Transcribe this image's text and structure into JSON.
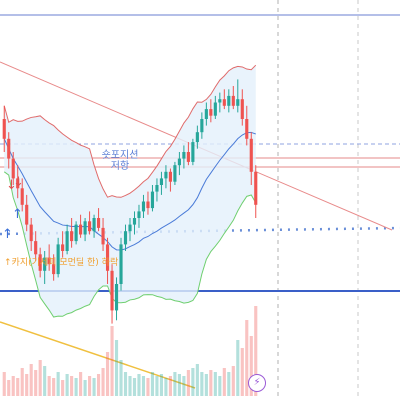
{
  "annotations": {
    "resistance_line1": "숏포지션",
    "resistance_line2": "저항",
    "entry_note": "↑카지(기세피 모먼딜 한) 하락"
  },
  "icons": {
    "replay": "lightning-icon"
  },
  "colors": {
    "up": "#26a69a",
    "down": "#ef5350",
    "band_fill": "#e3f0fb",
    "band_upper": "#e06b6b",
    "band_lower": "#6fcf6f",
    "band_mid": "#4a7bd8",
    "trend_red": "#e88a8a",
    "trend_orange": "#f0c040",
    "level_blue": "#3a5fc8",
    "dotted_blue": "#6a8fd8"
  },
  "chart_data": {
    "type": "candlestick",
    "overlays": [
      "bollinger_bands",
      "trendlines",
      "horizontal_levels"
    ],
    "price_range": [
      0,
      100
    ],
    "candles": [
      {
        "o": 70,
        "h": 74,
        "l": 60,
        "c": 64
      },
      {
        "o": 64,
        "h": 66,
        "l": 55,
        "c": 58
      },
      {
        "o": 58,
        "h": 60,
        "l": 50,
        "c": 52
      },
      {
        "o": 52,
        "h": 56,
        "l": 46,
        "c": 49
      },
      {
        "o": 49,
        "h": 52,
        "l": 42,
        "c": 44
      },
      {
        "o": 44,
        "h": 47,
        "l": 36,
        "c": 38
      },
      {
        "o": 38,
        "h": 40,
        "l": 30,
        "c": 33
      },
      {
        "o": 33,
        "h": 36,
        "l": 27,
        "c": 29
      },
      {
        "o": 29,
        "h": 31,
        "l": 22,
        "c": 24
      },
      {
        "o": 24,
        "h": 30,
        "l": 20,
        "c": 28
      },
      {
        "o": 28,
        "h": 32,
        "l": 24,
        "c": 26
      },
      {
        "o": 26,
        "h": 29,
        "l": 21,
        "c": 23
      },
      {
        "o": 23,
        "h": 34,
        "l": 22,
        "c": 32
      },
      {
        "o": 32,
        "h": 36,
        "l": 28,
        "c": 30
      },
      {
        "o": 30,
        "h": 38,
        "l": 29,
        "c": 36
      },
      {
        "o": 36,
        "h": 40,
        "l": 31,
        "c": 33
      },
      {
        "o": 33,
        "h": 39,
        "l": 32,
        "c": 38
      },
      {
        "o": 38,
        "h": 41,
        "l": 34,
        "c": 35
      },
      {
        "o": 35,
        "h": 40,
        "l": 33,
        "c": 39
      },
      {
        "o": 39,
        "h": 42,
        "l": 35,
        "c": 36
      },
      {
        "o": 36,
        "h": 41,
        "l": 34,
        "c": 40
      },
      {
        "o": 40,
        "h": 43,
        "l": 36,
        "c": 37
      },
      {
        "o": 37,
        "h": 40,
        "l": 30,
        "c": 32
      },
      {
        "o": 32,
        "h": 34,
        "l": 20,
        "c": 24
      },
      {
        "o": 24,
        "h": 26,
        "l": 8,
        "c": 12
      },
      {
        "o": 12,
        "h": 22,
        "l": 9,
        "c": 20
      },
      {
        "o": 20,
        "h": 34,
        "l": 18,
        "c": 32
      },
      {
        "o": 32,
        "h": 38,
        "l": 30,
        "c": 36
      },
      {
        "o": 36,
        "h": 40,
        "l": 33,
        "c": 38
      },
      {
        "o": 38,
        "h": 42,
        "l": 35,
        "c": 40
      },
      {
        "o": 40,
        "h": 44,
        "l": 37,
        "c": 42
      },
      {
        "o": 42,
        "h": 47,
        "l": 40,
        "c": 45
      },
      {
        "o": 45,
        "h": 48,
        "l": 41,
        "c": 43
      },
      {
        "o": 43,
        "h": 50,
        "l": 42,
        "c": 48
      },
      {
        "o": 48,
        "h": 52,
        "l": 45,
        "c": 50
      },
      {
        "o": 50,
        "h": 54,
        "l": 47,
        "c": 52
      },
      {
        "o": 52,
        "h": 56,
        "l": 49,
        "c": 54
      },
      {
        "o": 54,
        "h": 55,
        "l": 48,
        "c": 51
      },
      {
        "o": 51,
        "h": 57,
        "l": 50,
        "c": 56
      },
      {
        "o": 56,
        "h": 60,
        "l": 53,
        "c": 58
      },
      {
        "o": 58,
        "h": 62,
        "l": 55,
        "c": 60
      },
      {
        "o": 60,
        "h": 63,
        "l": 56,
        "c": 57
      },
      {
        "o": 57,
        "h": 64,
        "l": 56,
        "c": 63
      },
      {
        "o": 63,
        "h": 68,
        "l": 61,
        "c": 66
      },
      {
        "o": 66,
        "h": 72,
        "l": 64,
        "c": 70
      },
      {
        "o": 70,
        "h": 75,
        "l": 68,
        "c": 73
      },
      {
        "o": 73,
        "h": 76,
        "l": 69,
        "c": 71
      },
      {
        "o": 71,
        "h": 77,
        "l": 70,
        "c": 75
      },
      {
        "o": 75,
        "h": 78,
        "l": 72,
        "c": 76
      },
      {
        "o": 76,
        "h": 79,
        "l": 73,
        "c": 74
      },
      {
        "o": 74,
        "h": 79,
        "l": 72,
        "c": 77
      },
      {
        "o": 77,
        "h": 80,
        "l": 73,
        "c": 74
      },
      {
        "o": 74,
        "h": 82,
        "l": 72,
        "c": 76
      },
      {
        "o": 76,
        "h": 79,
        "l": 68,
        "c": 70
      },
      {
        "o": 70,
        "h": 74,
        "l": 62,
        "c": 64
      },
      {
        "o": 64,
        "h": 66,
        "l": 50,
        "c": 54
      },
      {
        "o": 54,
        "h": 56,
        "l": 40,
        "c": 44
      }
    ],
    "volume": [
      12,
      8,
      10,
      9,
      14,
      11,
      16,
      13,
      18,
      15,
      10,
      9,
      12,
      8,
      11,
      10,
      9,
      12,
      8,
      10,
      9,
      11,
      14,
      22,
      35,
      28,
      18,
      12,
      10,
      9,
      11,
      10,
      9,
      12,
      10,
      11,
      9,
      10,
      12,
      11,
      10,
      13,
      14,
      16,
      12,
      11,
      13,
      12,
      10,
      14,
      12,
      15,
      28,
      24,
      38,
      30,
      45
    ]
  }
}
